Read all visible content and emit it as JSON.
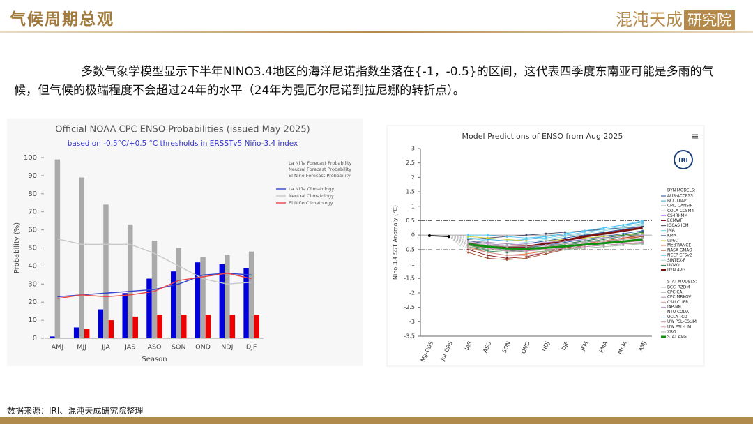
{
  "header": {
    "title": "气候周期总观",
    "logo": "混沌天成",
    "logo_box": "研究院"
  },
  "paragraph": "多数气象学模型显示下半年NINO3.4地区的海洋尼诺指数坐落在{-1，-0.5}的区间，这代表四季度东南亚可能是多雨的气候，但气候的极端程度不会超过24年的水平（24年为强厄尔尼诺到拉尼娜的转折点）。",
  "source": "数据来源：IRI、混沌天成研究院整理",
  "chart_data": [
    {
      "type": "bar",
      "title": "Official NOAA CPC ENSO Probabilities (issued May 2025)",
      "subtitle": "based on -0.5°C/+0.5 °C thresholds in ERSSTv5 Niño-3.4 index",
      "x_label": "Season",
      "y_label": "Probability (%)",
      "categories": [
        "AMJ",
        "MJJ",
        "JJA",
        "JAS",
        "ASO",
        "SON",
        "OND",
        "NDJ",
        "DJF"
      ],
      "ylim": [
        0,
        100
      ],
      "yticks": [
        0,
        10,
        20,
        30,
        40,
        50,
        60,
        70,
        80,
        90,
        100
      ],
      "series": [
        {
          "name": "La Niña Forecast Probability",
          "color": "#0000dd",
          "values": [
            1,
            6,
            16,
            25,
            33,
            37,
            42,
            41,
            39
          ]
        },
        {
          "name": "Neutral Forecast Probability",
          "color": "#aaaaaa",
          "values": [
            99,
            89,
            74,
            63,
            54,
            50,
            45,
            46,
            48
          ]
        },
        {
          "name": "El Niño Forecast Probability",
          "color": "#ee0000",
          "values": [
            0,
            5,
            10,
            12,
            13,
            13,
            13,
            13,
            13
          ]
        }
      ],
      "line_series": [
        {
          "name": "La Niña Climatology",
          "color": "#3344cc",
          "values": [
            23,
            24,
            25,
            26,
            27,
            30,
            35,
            36,
            35
          ]
        },
        {
          "name": "Neutral Climatology",
          "color": "#c8c8c8",
          "values": [
            55,
            52,
            52,
            52,
            47,
            40,
            33,
            30,
            31
          ]
        },
        {
          "name": "El Niño Climatology",
          "color": "#ee4444",
          "values": [
            22,
            24,
            23,
            24,
            26,
            32,
            34,
            36,
            33
          ]
        }
      ]
    },
    {
      "type": "line",
      "title": "Model Predictions of ENSO from Aug 2025",
      "y_label": "Nino 3.4 SST Anomaly (°C)",
      "logo": "IRI",
      "categories": [
        "MJJ-OBS",
        "Jul-OBS",
        "JAS",
        "ASO",
        "SON",
        "OND",
        "NDJ",
        "DJF",
        "JFM",
        "FMA",
        "MAM",
        "AMJ"
      ],
      "ylim": [
        -3.5,
        3
      ],
      "yticks": [
        3,
        2.5,
        2,
        1.5,
        1,
        0.5,
        0,
        -0.5,
        -1,
        -1.5,
        -2,
        -2.5,
        -3,
        -3.5
      ],
      "observed": {
        "color": "#000000",
        "values": [
          -0.02,
          -0.05,
          null,
          null,
          null,
          null,
          null,
          null,
          null,
          null,
          null,
          null
        ]
      },
      "group_labels": [
        "DYN MODELS:",
        "STAT MODELS:"
      ],
      "series": [
        {
          "group": 0,
          "name": "AUS-ACCESS",
          "color": "#1f4e9c",
          "values": [
            null,
            null,
            -0.2,
            -0.3,
            -0.35,
            -0.3,
            -0.2,
            -0.1,
            0,
            0.1,
            0.2,
            0.3
          ]
        },
        {
          "group": 0,
          "name": "BCC DIAP",
          "color": "#33aadd",
          "values": [
            null,
            null,
            -0.1,
            -0.15,
            -0.2,
            -0.15,
            -0.05,
            0.05,
            0.15,
            0.25,
            0.35,
            0.45
          ]
        },
        {
          "group": 0,
          "name": "CMC CANSIP",
          "color": "#2e8b57",
          "values": [
            null,
            null,
            -0.4,
            -0.55,
            -0.6,
            -0.55,
            -0.45,
            -0.35,
            -0.25,
            -0.15,
            -0.05,
            0.05
          ]
        },
        {
          "group": 0,
          "name": "COLA CCSM4",
          "color": "#9aa0a6",
          "values": [
            null,
            null,
            -0.3,
            -0.35,
            -0.4,
            -0.4,
            -0.35,
            -0.3,
            -0.2,
            -0.1,
            0,
            0.1
          ]
        },
        {
          "group": 0,
          "name": "CS-IRI-MM",
          "color": "#c77dff",
          "values": [
            null,
            null,
            -0.25,
            -0.4,
            -0.5,
            -0.5,
            -0.4,
            -0.3,
            -0.2,
            -0.1,
            0,
            0.05
          ]
        },
        {
          "group": 0,
          "name": "ECMWF",
          "color": "#8b1a1a",
          "values": [
            null,
            null,
            -0.5,
            -0.7,
            -0.8,
            -0.75,
            -0.6,
            -0.45,
            -0.3,
            -0.2,
            -0.1,
            0
          ]
        },
        {
          "group": 0,
          "name": "IOCAS ICM",
          "color": "#444466",
          "values": [
            null,
            null,
            -0.15,
            -0.1,
            -0.05,
            0,
            0.05,
            0.1,
            0.15,
            0.2,
            0.25,
            0.3
          ]
        },
        {
          "group": 0,
          "name": "JMA",
          "color": "#66ccee",
          "values": [
            null,
            null,
            -0.1,
            -0.2,
            -0.2,
            -0.15,
            -0.1,
            0,
            0.1,
            0.2,
            0.3,
            0.4
          ]
        },
        {
          "group": 0,
          "name": "KMA",
          "color": "#3366aa",
          "values": [
            null,
            null,
            -0.3,
            -0.45,
            -0.5,
            -0.45,
            -0.35,
            -0.25,
            -0.15,
            -0.05,
            0.05,
            0.15
          ]
        },
        {
          "group": 0,
          "name": "LDEO",
          "color": "#cccc33",
          "values": [
            null,
            null,
            -0.05,
            -0.1,
            -0.15,
            -0.2,
            -0.2,
            -0.15,
            -0.1,
            -0.05,
            0,
            0.05
          ]
        },
        {
          "group": 0,
          "name": "MetFRANCE",
          "color": "#e07040",
          "values": [
            null,
            null,
            -0.4,
            -0.6,
            -0.7,
            -0.65,
            -0.55,
            -0.4,
            -0.3,
            -0.2,
            -0.1,
            -0.05
          ]
        },
        {
          "group": 0,
          "name": "NASA GMAO",
          "color": "#a0522d",
          "values": [
            null,
            null,
            -0.6,
            -0.8,
            -0.85,
            -0.8,
            -0.65,
            -0.5,
            -0.35,
            -0.25,
            -0.15,
            -0.05
          ]
        },
        {
          "group": 0,
          "name": "NCEP CFSv2",
          "color": "#4fc3f7",
          "values": [
            null,
            null,
            0,
            0,
            -0.05,
            -0.1,
            -0.05,
            0.05,
            0.15,
            0.25,
            0.35,
            0.5
          ]
        },
        {
          "group": 0,
          "name": "SINTEX-F",
          "color": "#99dddd",
          "values": [
            null,
            null,
            -0.2,
            -0.25,
            -0.3,
            -0.25,
            -0.15,
            -0.05,
            0.05,
            0.15,
            0.25,
            0.35
          ]
        },
        {
          "group": 0,
          "name": "UKMO",
          "color": "#1b7f3a",
          "values": [
            null,
            null,
            -0.35,
            -0.5,
            -0.55,
            -0.5,
            -0.4,
            -0.3,
            -0.2,
            -0.1,
            0,
            0.1
          ]
        },
        {
          "group": 0,
          "name": "DYN AVG",
          "color": "#7b1010",
          "width": 3,
          "values": [
            null,
            null,
            -0.3,
            -0.38,
            -0.42,
            -0.4,
            -0.3,
            -0.18,
            -0.05,
            0.05,
            0.15,
            0.25
          ]
        },
        {
          "group": 1,
          "name": "BCC_RZDM",
          "color": "#bbbbbb",
          "values": [
            null,
            null,
            -0.35,
            -0.45,
            -0.5,
            -0.5,
            -0.45,
            -0.4,
            -0.35,
            -0.3,
            -0.25,
            -0.2
          ]
        },
        {
          "group": 1,
          "name": "CPC CA",
          "color": "#999999",
          "values": [
            null,
            null,
            -0.3,
            -0.35,
            -0.45,
            -0.5,
            -0.5,
            -0.45,
            -0.4,
            -0.35,
            -0.3,
            -0.25
          ]
        },
        {
          "group": 1,
          "name": "CPC MRKOV",
          "color": "#aa88aa",
          "values": [
            null,
            null,
            -0.2,
            -0.25,
            -0.3,
            -0.35,
            -0.35,
            -0.3,
            -0.25,
            -0.2,
            -0.15,
            -0.1
          ]
        },
        {
          "group": 1,
          "name": "CSU CLIPR",
          "color": "#cc9999",
          "values": [
            null,
            null,
            -0.45,
            -0.6,
            -0.7,
            -0.7,
            -0.6,
            -0.5,
            -0.4,
            -0.35,
            -0.3,
            -0.3
          ]
        },
        {
          "group": 1,
          "name": "IAP-NN",
          "color": "#bb99cc",
          "values": [
            null,
            null,
            -0.25,
            -0.3,
            -0.35,
            -0.3,
            -0.25,
            -0.2,
            -0.15,
            -0.1,
            -0.05,
            0
          ]
        },
        {
          "group": 1,
          "name": "NTU CODA",
          "color": "#99bb99",
          "values": [
            null,
            null,
            -0.4,
            -0.5,
            -0.55,
            -0.6,
            -0.55,
            -0.5,
            -0.45,
            -0.4,
            -0.35,
            -0.3
          ]
        },
        {
          "group": 1,
          "name": "UCLA-TCD",
          "color": "#88aacc",
          "values": [
            null,
            null,
            -0.3,
            -0.4,
            -0.5,
            -0.55,
            -0.5,
            -0.45,
            -0.4,
            -0.35,
            -0.3,
            -0.25
          ]
        },
        {
          "group": 1,
          "name": "UW PSL-CSLIM",
          "color": "#cc88aa",
          "values": [
            null,
            null,
            -0.35,
            -0.45,
            -0.55,
            -0.55,
            -0.5,
            -0.45,
            -0.4,
            -0.35,
            -0.3,
            -0.25
          ]
        },
        {
          "group": 1,
          "name": "UW PSL-LIM",
          "color": "#dd99bb",
          "values": [
            null,
            null,
            -0.3,
            -0.4,
            -0.45,
            -0.45,
            -0.4,
            -0.35,
            -0.3,
            -0.25,
            -0.25,
            -0.2
          ]
        },
        {
          "group": 1,
          "name": "XRO",
          "color": "#aaaaaa",
          "values": [
            null,
            null,
            -0.25,
            -0.35,
            -0.4,
            -0.4,
            -0.35,
            -0.3,
            -0.25,
            -0.2,
            -0.15,
            -0.1
          ]
        },
        {
          "group": 1,
          "name": "STAT AVG",
          "color": "#109010",
          "width": 3,
          "values": [
            null,
            null,
            -0.32,
            -0.4,
            -0.46,
            -0.47,
            -0.44,
            -0.39,
            -0.33,
            -0.28,
            -0.22,
            -0.15
          ]
        }
      ]
    }
  ]
}
